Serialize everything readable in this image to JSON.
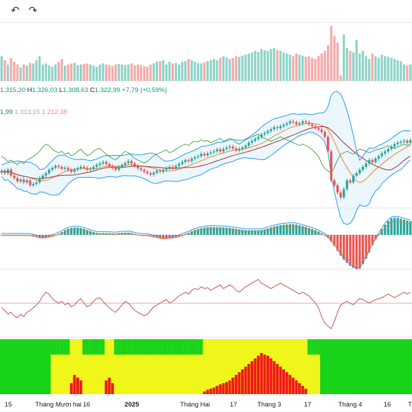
{
  "toolbar": {
    "undo_icon": "undo-icon",
    "redo_icon": "redo-icon"
  },
  "legend": {
    "open": "1.315,20",
    "high_label": "H",
    "high": "1.326,03",
    "low_label": "L",
    "low": "1.308,63",
    "close_label": "C",
    "close": "1.322,99",
    "change": "+7,79 (+0,59%)",
    "ma_values": [
      {
        "text": "1,99",
        "color": "#1e8a3a"
      },
      {
        "text": "1.313,15",
        "color": "#7bc47f"
      },
      {
        "text": "1.212,38",
        "color": "#f28b82"
      }
    ]
  },
  "colors": {
    "up": "#26a69a",
    "down": "#ef5350",
    "up_volume": "#8fd3c7",
    "down_volume": "#f7a9a8",
    "bollinger": "#2196f3",
    "rsi": "#c0504d",
    "stoch": "#3a9a3a",
    "green_zone": "#19d31a",
    "yellow_zone": "#f0f51a",
    "red_zone": "#ee1a1a"
  },
  "x_axis": {
    "labels": [
      "15",
      "Tháng Mười hai",
      "16",
      "2025",
      "Tháng Hai",
      "17",
      "Tháng 3",
      "17",
      "Tháng 4",
      "16",
      "T"
    ]
  },
  "chart_data": {
    "type": "candlestick",
    "bars": 130,
    "price_closes": [
      1260,
      1255,
      1262,
      1250,
      1245,
      1238,
      1242,
      1236,
      1240,
      1230,
      1233,
      1236,
      1245,
      1250,
      1255,
      1262,
      1266,
      1270,
      1268,
      1264,
      1266,
      1262,
      1258,
      1262,
      1265,
      1268,
      1266,
      1262,
      1264,
      1268,
      1272,
      1275,
      1278,
      1274,
      1270,
      1266,
      1262,
      1268,
      1272,
      1276,
      1280,
      1275,
      1270,
      1265,
      1262,
      1258,
      1255,
      1252,
      1256,
      1260,
      1258,
      1262,
      1265,
      1268,
      1266,
      1270,
      1274,
      1278,
      1282,
      1280,
      1285,
      1288,
      1290,
      1295,
      1292,
      1296,
      1298,
      1300,
      1304,
      1300,
      1305,
      1308,
      1310,
      1306,
      1302,
      1305,
      1308,
      1312,
      1318,
      1322,
      1326,
      1330,
      1335,
      1338,
      1342,
      1346,
      1350,
      1348,
      1352,
      1355,
      1358,
      1362,
      1360,
      1356,
      1358,
      1362,
      1360,
      1356,
      1352,
      1348,
      1345,
      1340,
      1330,
      1300,
      1240,
      1230,
      1215,
      1205,
      1222,
      1240,
      1236,
      1250,
      1255,
      1262,
      1268,
      1275,
      1282,
      1278,
      1285,
      1290,
      1296,
      1300,
      1305,
      1310,
      1315,
      1318,
      1320,
      1322,
      1318,
      1323
    ],
    "volume_levels": [
      0.45,
      0.38,
      0.3,
      0.42,
      0.35,
      0.3,
      0.25,
      0.3,
      0.28,
      0.33,
      0.32,
      0.38,
      0.45,
      0.3,
      0.32,
      0.28,
      0.26,
      0.3,
      0.35,
      0.4,
      0.28,
      0.3,
      0.32,
      0.33,
      0.29,
      0.3,
      0.31,
      0.32,
      0.3,
      0.28,
      0.26,
      0.3,
      0.32,
      0.3,
      0.29,
      0.27,
      0.3,
      0.31,
      0.3,
      0.29,
      0.3,
      0.32,
      0.28,
      0.3,
      0.29,
      0.27,
      0.26,
      0.3,
      0.32,
      0.35,
      0.36,
      0.38,
      0.3,
      0.35,
      0.32,
      0.33,
      0.3,
      0.35,
      0.36,
      0.4,
      0.38,
      0.35,
      0.33,
      0.32,
      0.34,
      0.36,
      0.38,
      0.4,
      0.38,
      0.42,
      0.45,
      0.43,
      0.4,
      0.42,
      0.45,
      0.44,
      0.46,
      0.48,
      0.5,
      0.52,
      0.55,
      0.53,
      0.58,
      0.56,
      0.55,
      0.58,
      0.6,
      0.56,
      0.55,
      0.52,
      0.5,
      0.48,
      0.45,
      0.5,
      0.48,
      0.46,
      0.44,
      0.45,
      0.42,
      0.4,
      0.46,
      0.5,
      0.55,
      0.65,
      1.0,
      0.82,
      0.7,
      0.1,
      0.85,
      0.6,
      0.55,
      0.52,
      0.75,
      0.5,
      0.55,
      0.45,
      0.4,
      0.5,
      0.45,
      0.42,
      0.48,
      0.45,
      0.44,
      0.42,
      0.4,
      0.38,
      0.36,
      0.3,
      0.28,
      0.3
    ],
    "rsi": [
      45,
      42,
      38,
      40,
      36,
      34,
      38,
      35,
      40,
      42,
      45,
      48,
      52,
      58,
      62,
      60,
      55,
      52,
      50,
      52,
      48,
      50,
      46,
      48,
      52,
      55,
      50,
      46,
      48,
      52,
      55,
      56,
      52,
      48,
      45,
      42,
      40,
      44,
      48,
      52,
      50,
      46,
      42,
      40,
      38,
      36,
      38,
      42,
      46,
      48,
      50,
      52,
      54,
      50,
      52,
      55,
      58,
      60,
      62,
      60,
      64,
      66,
      65,
      68,
      66,
      67,
      64,
      66,
      68,
      70,
      66,
      68,
      70,
      68,
      64,
      62,
      65,
      68,
      70,
      72,
      74,
      76,
      72,
      70,
      68,
      66,
      68,
      70,
      72,
      70,
      68,
      66,
      64,
      62,
      60,
      62,
      60,
      58,
      54,
      50,
      45,
      35,
      28,
      25,
      22,
      30,
      40,
      48,
      50,
      52,
      50,
      48,
      52,
      55,
      54,
      52,
      50,
      52,
      54,
      55,
      56,
      58,
      60,
      58,
      56,
      58,
      60,
      62,
      60,
      62
    ],
    "oscillator_state": [
      "green",
      "green",
      "green",
      "green",
      "green",
      "green",
      "green",
      "green",
      "green",
      "green",
      "green",
      "green",
      "green",
      "green",
      "green",
      "green",
      "yellow",
      "yellow",
      "yellow",
      "yellow",
      "yellow",
      "yellow",
      "yellow",
      "yellow",
      "yellow",
      "yellow",
      "yellow",
      "yellow",
      "yellow",
      "yellow",
      "yellow",
      "yellow",
      "yellow",
      "yellow",
      "yellow",
      "yellow",
      "yellow",
      "yellow",
      "yellow",
      "yellow",
      "yellow",
      "yellow",
      "yellow",
      "yellow",
      "yellow",
      "yellow",
      "yellow",
      "yellow",
      "yellow",
      "yellow",
      "yellow",
      "yellow",
      "yellow",
      "yellow",
      "yellow",
      "yellow",
      "yellow",
      "yellow",
      "yellow",
      "yellow",
      "yellow",
      "yellow",
      "yellow",
      "yellow",
      "yellow",
      "yellow",
      "yellow",
      "yellow",
      "yellow",
      "yellow",
      "yellow",
      "yellow",
      "yellow",
      "yellow",
      "yellow",
      "yellow",
      "yellow",
      "yellow",
      "yellow",
      "yellow",
      "yellow",
      "yellow",
      "yellow",
      "yellow",
      "yellow",
      "yellow",
      "yellow",
      "yellow",
      "yellow",
      "yellow",
      "yellow",
      "yellow",
      "yellow",
      "yellow",
      "yellow",
      "yellow",
      "yellow",
      "yellow",
      "yellow",
      "yellow",
      "yellow",
      "green",
      "green",
      "green",
      "green",
      "green",
      "green",
      "green",
      "green",
      "green",
      "green",
      "green",
      "green",
      "green",
      "green",
      "green",
      "green",
      "green",
      "green",
      "green",
      "green",
      "green",
      "green",
      "green",
      "green",
      "green",
      "green",
      "green",
      "green",
      "green"
    ],
    "oscillator_red": [
      0,
      0,
      0,
      0,
      0,
      0,
      0,
      0,
      0,
      0,
      0,
      0,
      0,
      0,
      0,
      0,
      0,
      0,
      0,
      0,
      0,
      0,
      0.2,
      0.35,
      0.3,
      0.25,
      0,
      0,
      0,
      0,
      0,
      0,
      0,
      0.25,
      0.3,
      0.2,
      0,
      0,
      0,
      0,
      0,
      0,
      0,
      0,
      0,
      0,
      0,
      0,
      0,
      0,
      0,
      0,
      0,
      0,
      0,
      0,
      0,
      0,
      0,
      0,
      0,
      0,
      0,
      0,
      0.05,
      0.08,
      0.1,
      0.12,
      0.15,
      0.18,
      0.2,
      0.22,
      0.25,
      0.3,
      0.35,
      0.4,
      0.45,
      0.5,
      0.55,
      0.6,
      0.65,
      0.7,
      0.75,
      0.72,
      0.7,
      0.65,
      0.6,
      0.55,
      0.5,
      0.45,
      0.4,
      0.35,
      0.3,
      0.25,
      0.2,
      0.15,
      0.1,
      0,
      0,
      0,
      0,
      0,
      0,
      0,
      0,
      0,
      0,
      0,
      0,
      0,
      0,
      0,
      0,
      0,
      0,
      0,
      0,
      0,
      0,
      0,
      0,
      0,
      0,
      0,
      0,
      0
    ]
  }
}
